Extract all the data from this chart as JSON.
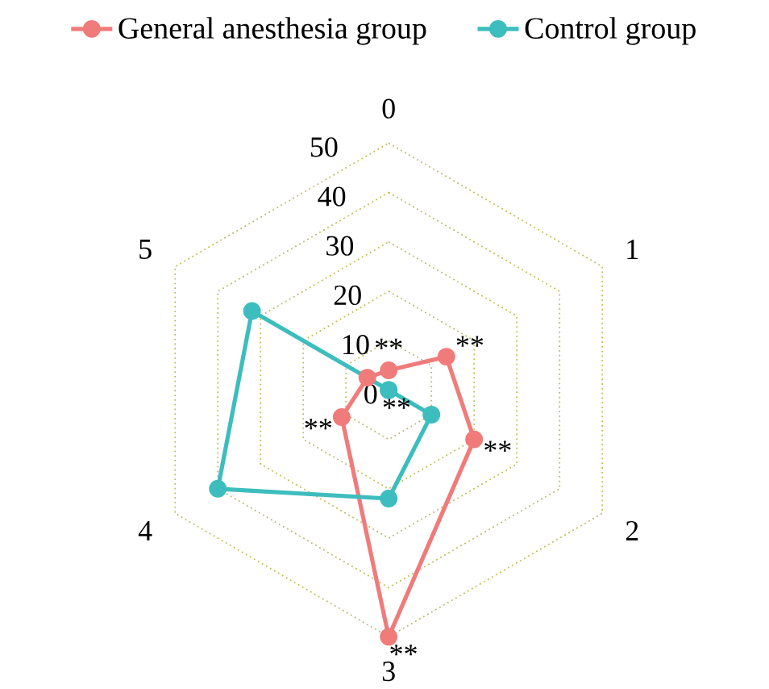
{
  "chart_data": {
    "type": "radar",
    "categories": [
      "0",
      "1",
      "2",
      "3",
      "4",
      "5"
    ],
    "series": [
      {
        "name": "General anesthesia group",
        "color": "#f07b7b",
        "values": [
          4,
          13.5,
          20,
          50,
          11,
          5
        ]
      },
      {
        "name": "Control group",
        "color": "#3dbdbd",
        "values": [
          0,
          0,
          10,
          22,
          40,
          32
        ]
      }
    ],
    "ylim": [
      0,
      50
    ],
    "yticks": [
      0,
      10,
      20,
      30,
      40,
      50
    ],
    "grid": true,
    "legend": "top",
    "marker": "circle",
    "line_style": "solid",
    "annotations": [
      "**",
      "**",
      "**",
      "**",
      "**",
      "**"
    ]
  }
}
